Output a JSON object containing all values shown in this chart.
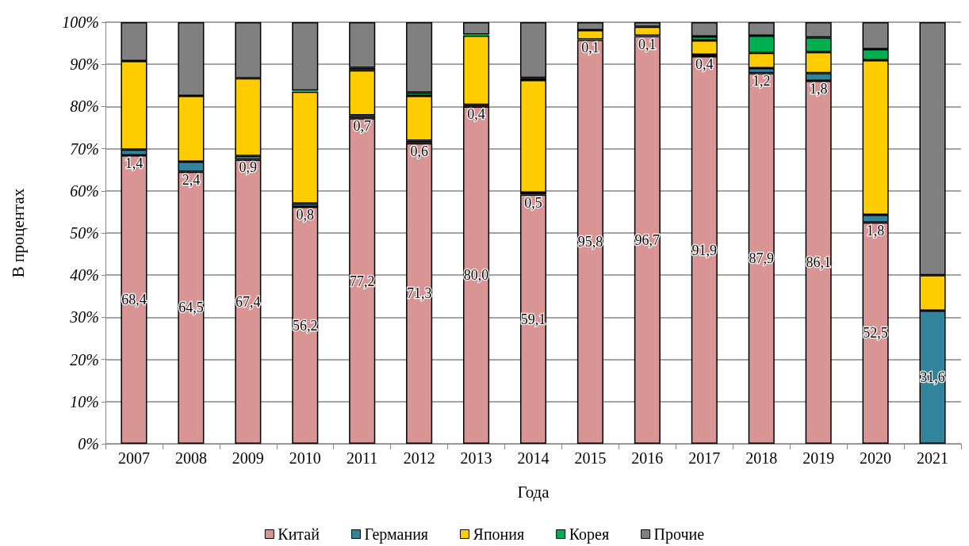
{
  "chart_data": {
    "type": "bar",
    "stacked": true,
    "xlabel": "Года",
    "ylabel": "В процентах",
    "categories": [
      "2007",
      "2008",
      "2009",
      "2010",
      "2011",
      "2012",
      "2013",
      "2014",
      "2015",
      "2016",
      "2017",
      "2018",
      "2019",
      "2020",
      "2021"
    ],
    "series": [
      {
        "name": "Китай",
        "color": "#d99594",
        "values": [
          68.4,
          64.5,
          67.4,
          56.2,
          77.2,
          71.3,
          80.0,
          59.1,
          95.8,
          96.7,
          91.9,
          87.9,
          86.1,
          52.5,
          null
        ],
        "value_labels": [
          "68,4",
          "64,5",
          "67,4",
          "56,2",
          "77,2",
          "71,3",
          "80,0",
          "59,1",
          "95,8",
          "96,7",
          "91,9",
          "87,9",
          "86,1",
          "52,5",
          null
        ]
      },
      {
        "name": "Германия",
        "color": "#31849b",
        "values": [
          1.4,
          2.4,
          0.9,
          0.8,
          0.7,
          0.6,
          0.4,
          0.5,
          0.1,
          0.1,
          0.4,
          1.2,
          1.8,
          1.8,
          31.6
        ],
        "value_labels": [
          "1,4",
          "2,4",
          "0,9",
          "0,8",
          "0,7",
          "0,6",
          "0,4",
          "0,5",
          "0,1",
          "0,1",
          "0,4",
          "1,2",
          "1,8",
          "1,8",
          "31,6"
        ]
      },
      {
        "name": "Япония",
        "color": "#ffcc00",
        "values": [
          21.0,
          15.6,
          18.4,
          26.5,
          10.7,
          10.6,
          16.4,
          26.7,
          2.2,
          2.1,
          3.4,
          3.6,
          5.0,
          36.7,
          8.4
        ]
      },
      {
        "name": "Корея",
        "color": "#00b050",
        "values": [
          null,
          null,
          null,
          0.3,
          0.6,
          0.8,
          0.3,
          0.5,
          null,
          null,
          0.9,
          4.1,
          3.5,
          2.6,
          null
        ]
      },
      {
        "name": "Прочие",
        "color": "#808080",
        "values": [
          9.2,
          17.5,
          13.3,
          16.2,
          10.8,
          16.7,
          2.9,
          13.2,
          1.9,
          1.1,
          3.4,
          3.2,
          3.6,
          6.4,
          60.0
        ]
      }
    ],
    "ylim": [
      0,
      100
    ],
    "yticks": [
      {
        "value": 0,
        "label": "0%"
      },
      {
        "value": 10,
        "label": "10%"
      },
      {
        "value": 20,
        "label": "20%"
      },
      {
        "value": 30,
        "label": "30%"
      },
      {
        "value": 40,
        "label": "40%"
      },
      {
        "value": 50,
        "label": "50%"
      },
      {
        "value": 60,
        "label": "60%"
      },
      {
        "value": 70,
        "label": "70%"
      },
      {
        "value": 80,
        "label": "80%"
      },
      {
        "value": 90,
        "label": "90%"
      },
      {
        "value": 100,
        "label": "100%"
      }
    ],
    "grid": "y",
    "legend": "bottom"
  }
}
